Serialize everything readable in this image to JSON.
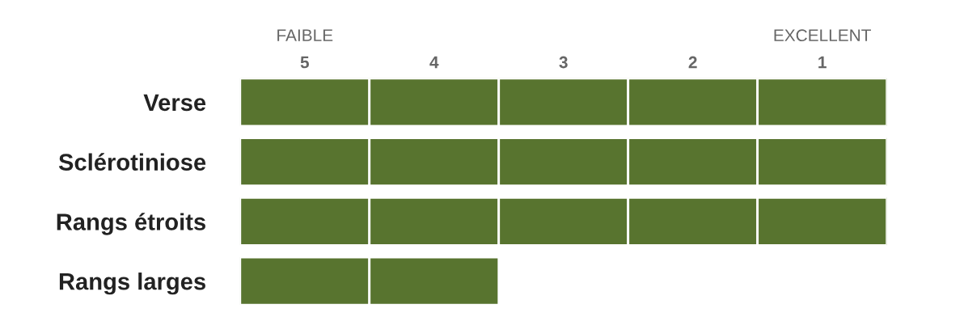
{
  "chart_data": {
    "type": "bar",
    "orientation": "horizontal",
    "categories": [
      "Verse",
      "Sclérotiniose",
      "Rangs étroits",
      "Rangs larges"
    ],
    "series": [
      {
        "color": "#58742f",
        "values": [
          -1,
          -1,
          -1,
          -1
        ],
        "base": [
          5.5,
          5.5,
          5.5,
          5.5
        ]
      },
      {
        "color": "#58742f",
        "values": [
          -1,
          -1,
          -1,
          -1
        ],
        "base": [
          4.5,
          4.5,
          4.5,
          4.5
        ]
      },
      {
        "color": "#58742f",
        "values": [
          -1,
          -1,
          -1,
          null
        ],
        "base": [
          3.5,
          3.5,
          3.5,
          null
        ]
      },
      {
        "color": "#58742f",
        "values": [
          -1,
          -1,
          -1,
          null
        ],
        "base": [
          2.5,
          2.5,
          2.5,
          null
        ]
      },
      {
        "color": "#58742f",
        "values": [
          -1,
          -1,
          -1,
          null
        ],
        "base": [
          1.5,
          1.5,
          1.5,
          null
        ]
      }
    ],
    "xlim": [
      5.5,
      0.5
    ],
    "xticks": [
      5,
      4,
      3,
      2,
      1
    ],
    "annotations": [
      "FAIBLE",
      "EXCELLENT"
    ],
    "grid": false,
    "legend": false
  }
}
